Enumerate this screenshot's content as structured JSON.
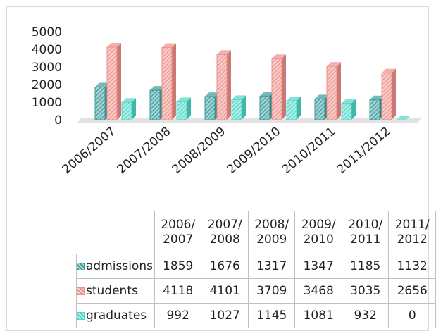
{
  "chart_data": {
    "type": "bar",
    "categories": [
      "2006/2007",
      "2007/2008",
      "2008/2009",
      "2009/2010",
      "2010/2011",
      "2011/2012"
    ],
    "series": [
      {
        "name": "admissions",
        "color": "#3a9b9b",
        "values": [
          1859,
          1676,
          1317,
          1347,
          1185,
          1132
        ]
      },
      {
        "name": "students",
        "color": "#ee8f8a",
        "values": [
          4118,
          4101,
          3709,
          3468,
          3035,
          2656
        ]
      },
      {
        "name": "graduates",
        "color": "#4fd6c8",
        "values": [
          992,
          1027,
          1145,
          1081,
          932,
          0
        ]
      }
    ],
    "ylim": [
      0,
      5000
    ],
    "yticks": [
      0,
      1000,
      2000,
      3000,
      4000,
      5000
    ],
    "grid": false
  }
}
